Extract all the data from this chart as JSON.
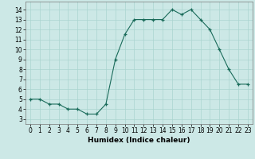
{
  "x": [
    0,
    1,
    2,
    3,
    4,
    5,
    6,
    7,
    8,
    9,
    10,
    11,
    12,
    13,
    14,
    15,
    16,
    17,
    18,
    19,
    20,
    21,
    22,
    23
  ],
  "y": [
    5,
    5,
    4.5,
    4.5,
    4,
    4,
    3.5,
    3.5,
    4.5,
    9,
    11.5,
    13,
    13,
    13,
    13,
    14,
    13.5,
    14,
    13,
    12,
    10,
    8,
    6.5,
    6.5
  ],
  "xlabel": "Humidex (Indice chaleur)",
  "line_color": "#1a6b5a",
  "marker_color": "#1a6b5a",
  "bg_color": "#cce8e6",
  "grid_color": "#aad4d0",
  "axis_bg": "#cce8e6",
  "ylim": [
    2.5,
    14.8
  ],
  "xlim": [
    -0.5,
    23.5
  ],
  "yticks": [
    3,
    4,
    5,
    6,
    7,
    8,
    9,
    10,
    11,
    12,
    13,
    14
  ],
  "xticks": [
    0,
    1,
    2,
    3,
    4,
    5,
    6,
    7,
    8,
    9,
    10,
    11,
    12,
    13,
    14,
    15,
    16,
    17,
    18,
    19,
    20,
    21,
    22,
    23
  ],
  "label_fontsize": 6.5,
  "tick_fontsize": 5.5
}
